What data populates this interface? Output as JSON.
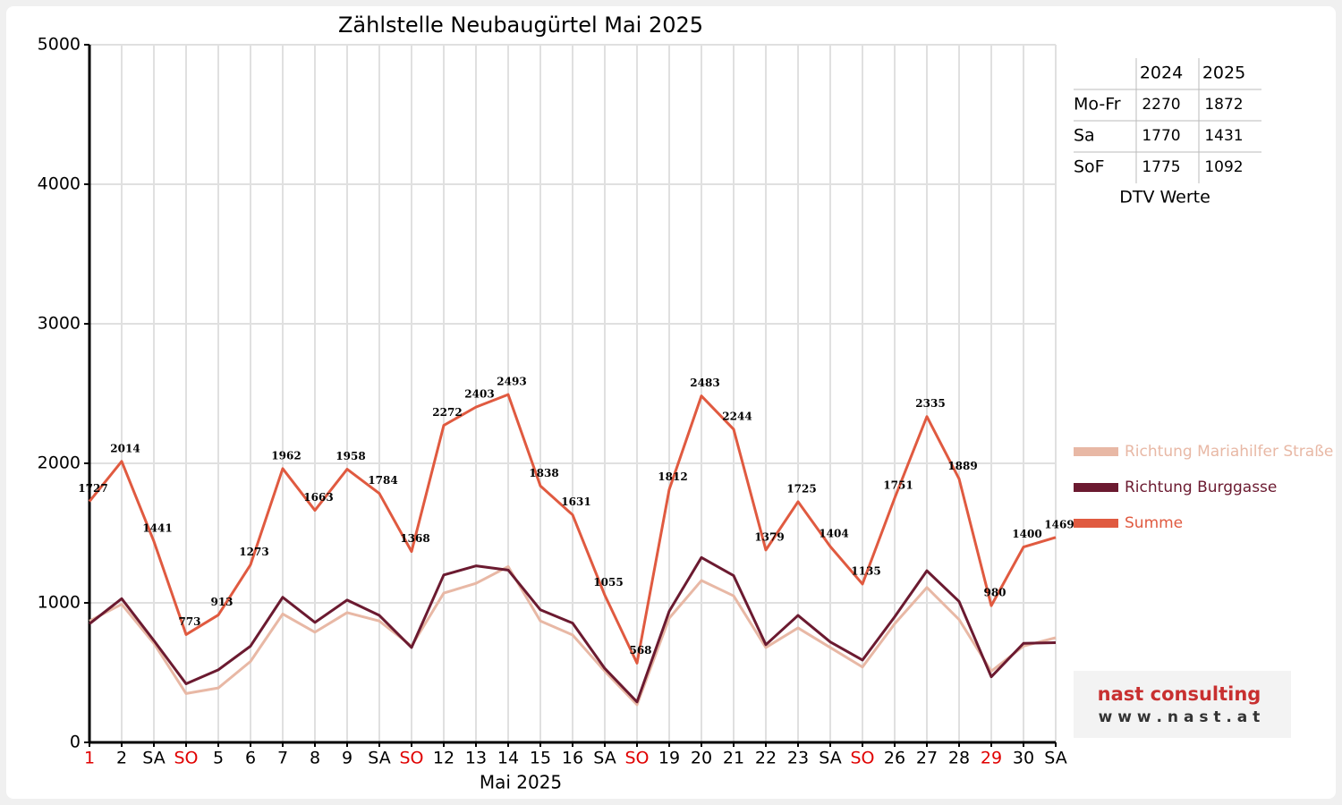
{
  "chart_data": {
    "type": "line",
    "title": "Zählstelle Neubaugürtel Mai 2025",
    "x_label": "Mai 2025",
    "categories": [
      "1",
      "2",
      "SA",
      "SO",
      "5",
      "6",
      "7",
      "8",
      "9",
      "SA",
      "SO",
      "12",
      "13",
      "14",
      "15",
      "16",
      "SA",
      "SO",
      "19",
      "20",
      "21",
      "22",
      "23",
      "SA",
      "SO",
      "26",
      "27",
      "28",
      "29",
      "30",
      "SA"
    ],
    "category_label_colors": [
      "#e00000",
      "#000000",
      "#000000",
      "#e00000",
      "#000000",
      "#000000",
      "#000000",
      "#000000",
      "#000000",
      "#000000",
      "#e00000",
      "#000000",
      "#000000",
      "#000000",
      "#000000",
      "#000000",
      "#000000",
      "#e00000",
      "#000000",
      "#000000",
      "#000000",
      "#000000",
      "#000000",
      "#000000",
      "#e00000",
      "#000000",
      "#000000",
      "#000000",
      "#e00000",
      "#000000",
      "#000000"
    ],
    "series": [
      {
        "name": "Richtung Mariahilfer Straße",
        "color": "#e8b8a5",
        "values": [
          870,
          990,
          710,
          350,
          390,
          580,
          920,
          790,
          930,
          870,
          690,
          1070,
          1140,
          1260,
          870,
          770,
          510,
          270,
          890,
          1160,
          1050,
          680,
          820,
          680,
          540,
          850,
          1110,
          880,
          510,
          690,
          750
        ]
      },
      {
        "name": "Richtung Burggasse",
        "color": "#6b1a30",
        "values": [
          850,
          1030,
          730,
          420,
          520,
          690,
          1040,
          860,
          1020,
          910,
          680,
          1200,
          1265,
          1235,
          950,
          855,
          530,
          290,
          940,
          1325,
          1195,
          700,
          910,
          720,
          590,
          900,
          1230,
          1010,
          470,
          710,
          715
        ]
      },
      {
        "name": "Summe",
        "color": "#e05a40",
        "show_value_labels": true,
        "values": [
          1727,
          2014,
          1441,
          773,
          913,
          1273,
          1962,
          1663,
          1958,
          1784,
          1368,
          2272,
          2403,
          2493,
          1838,
          1631,
          1055,
          568,
          1812,
          2483,
          2244,
          1379,
          1725,
          1404,
          1135,
          1751,
          2335,
          1889,
          980,
          1400,
          1469
        ]
      }
    ],
    "ylim": [
      0,
      5000
    ],
    "yticks": [
      0,
      1000,
      2000,
      3000,
      4000,
      5000
    ],
    "grid": true,
    "table": {
      "header": [
        "2024",
        "2025"
      ],
      "rows": [
        [
          "Mo-Fr",
          "2270",
          "1872"
        ],
        [
          "Sa",
          "1770",
          "1431"
        ],
        [
          "SoF",
          "1775",
          "1092"
        ]
      ],
      "caption": "DTV Werte"
    },
    "logo": {
      "name": "nast consulting",
      "url": "w w w . n a s t . a t"
    }
  }
}
